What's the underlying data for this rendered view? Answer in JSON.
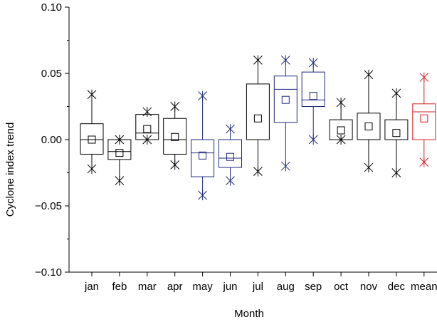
{
  "chart_data": {
    "type": "box",
    "xlabel": "Month",
    "ylabel": "Cyclone index trend",
    "ylim": [
      -0.1,
      0.1
    ],
    "yticks": [
      {
        "value": 0.1,
        "label": "0.10"
      },
      {
        "value": 0.05,
        "label": "0.05"
      },
      {
        "value": 0.0,
        "label": "0.00"
      },
      {
        "value": -0.05,
        "label": "−0.05"
      },
      {
        "value": -0.1,
        "label": "−0.10"
      }
    ],
    "grid": false,
    "colors": {
      "black": "#000000",
      "blue": "#1f2a7a",
      "red": "#d42020"
    },
    "boxes": [
      {
        "label": "jan",
        "color": "black",
        "max": 0.034,
        "q3": 0.012,
        "median": 0.0,
        "q1": -0.011,
        "min": -0.022,
        "mean": 0.0
      },
      {
        "label": "feb",
        "color": "black",
        "max": 0.0,
        "q3": 0.0,
        "median": -0.009,
        "q1": -0.015,
        "min": -0.031,
        "mean": -0.01
      },
      {
        "label": "mar",
        "color": "black",
        "max": 0.021,
        "q3": 0.019,
        "median": 0.005,
        "q1": 0.0,
        "min": 0.0,
        "mean": 0.008
      },
      {
        "label": "apr",
        "color": "black",
        "max": 0.025,
        "q3": 0.016,
        "median": 0.0,
        "q1": -0.011,
        "min": -0.019,
        "mean": 0.002
      },
      {
        "label": "may",
        "color": "blue",
        "max": 0.033,
        "q3": 0.0,
        "median": -0.01,
        "q1": -0.028,
        "min": -0.042,
        "mean": -0.012
      },
      {
        "label": "jun",
        "color": "blue",
        "max": 0.008,
        "q3": 0.0,
        "median": -0.014,
        "q1": -0.021,
        "min": -0.031,
        "mean": -0.013
      },
      {
        "label": "jul",
        "color": "black",
        "max": 0.06,
        "q3": 0.042,
        "median": 0.0,
        "q1": 0.0,
        "min": -0.024,
        "mean": 0.016
      },
      {
        "label": "aug",
        "color": "blue",
        "max": 0.06,
        "q3": 0.048,
        "median": 0.038,
        "q1": 0.013,
        "min": -0.02,
        "mean": 0.03
      },
      {
        "label": "sep",
        "color": "blue",
        "max": 0.058,
        "q3": 0.051,
        "median": 0.03,
        "q1": 0.025,
        "min": 0.0,
        "mean": 0.033
      },
      {
        "label": "oct",
        "color": "black",
        "max": 0.028,
        "q3": 0.015,
        "median": 0.0,
        "q1": 0.0,
        "min": 0.0,
        "mean": 0.007
      },
      {
        "label": "nov",
        "color": "black",
        "max": 0.049,
        "q3": 0.02,
        "median": 0.0,
        "q1": 0.0,
        "min": -0.021,
        "mean": 0.01
      },
      {
        "label": "dec",
        "color": "black",
        "max": 0.035,
        "q3": 0.015,
        "median": 0.0,
        "q1": 0.0,
        "min": -0.025,
        "mean": 0.005
      },
      {
        "label": "mean",
        "color": "red",
        "max": 0.047,
        "q3": 0.027,
        "median": 0.021,
        "q1": 0.0,
        "min": -0.017,
        "mean": 0.016
      }
    ]
  }
}
